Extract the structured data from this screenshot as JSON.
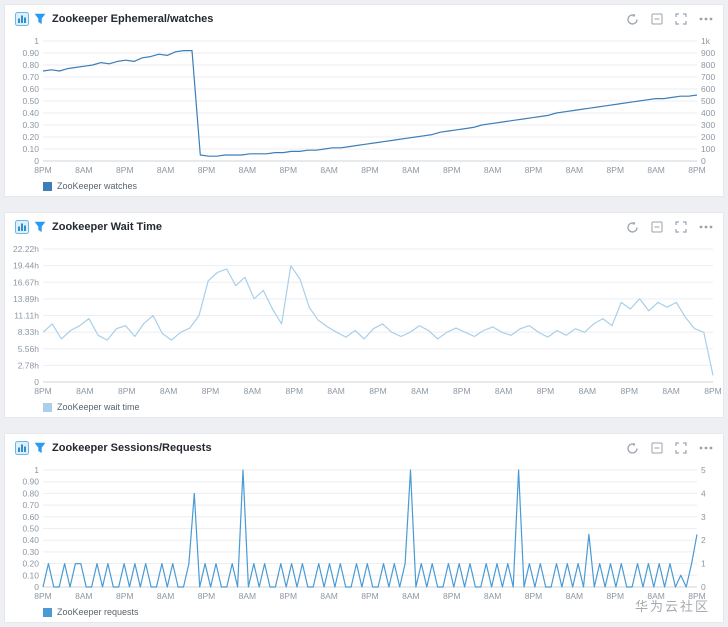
{
  "watermark": "华为云社区",
  "colors": {
    "page_background": "#edeff2",
    "panel_border": "#e6e8eb",
    "title_text": "#24292f",
    "axis_text": "#8d97a3",
    "gridline": "#eceef1",
    "axis_line": "#cfd4da",
    "filter_icon": "#2b9af3",
    "toolbar_icon": "#9aa3ad",
    "watches_line": "#3d7eb8",
    "wait_time_line": "#a9cfe9",
    "requests_line": "#4a9ad4"
  },
  "header_icons": {
    "left": [
      "chart-panel-icon",
      "filter-icon"
    ],
    "right": [
      "refresh-icon",
      "collapse-icon",
      "fullscreen-icon",
      "more-icon"
    ]
  },
  "panels": [
    {
      "title": "Zookeeper Ephemeral/watches",
      "legend": "ZooKeeper watches"
    },
    {
      "title": "Zookeeper Wait Time",
      "legend": "ZooKeeper wait time"
    },
    {
      "title": "Zookeeper Sessions/Requests",
      "legend": "ZooKeeper requests"
    }
  ],
  "chart_data": [
    {
      "type": "line",
      "title": "Zookeeper Ephemeral/watches",
      "ylim": [
        0,
        1
      ],
      "yticks_left": [
        "0",
        "0.10",
        "0.20",
        "0.30",
        "0.40",
        "0.50",
        "0.60",
        "0.70",
        "0.80",
        "0.90",
        "1"
      ],
      "yticks_right": [
        "0",
        "100",
        "200",
        "300",
        "400",
        "500",
        "600",
        "700",
        "800",
        "900",
        "1k"
      ],
      "xticks": [
        "8PM",
        "8AM",
        "8PM",
        "8AM",
        "8PM",
        "8AM",
        "8PM",
        "8AM",
        "8PM",
        "8AM",
        "8PM",
        "8AM",
        "8PM",
        "8AM",
        "8PM",
        "8AM",
        "8PM"
      ],
      "grid": true,
      "legend_position": "bottom-left",
      "series": [
        {
          "name": "ZooKeeper watches",
          "color": "#3d7eb8",
          "values": [
            0.75,
            0.76,
            0.75,
            0.77,
            0.78,
            0.79,
            0.8,
            0.82,
            0.81,
            0.83,
            0.84,
            0.83,
            0.86,
            0.87,
            0.89,
            0.88,
            0.91,
            0.92,
            0.92,
            0.05,
            0.04,
            0.04,
            0.05,
            0.05,
            0.05,
            0.06,
            0.06,
            0.06,
            0.07,
            0.07,
            0.08,
            0.08,
            0.09,
            0.09,
            0.1,
            0.11,
            0.11,
            0.12,
            0.13,
            0.14,
            0.15,
            0.16,
            0.17,
            0.18,
            0.19,
            0.2,
            0.21,
            0.22,
            0.24,
            0.25,
            0.26,
            0.27,
            0.28,
            0.3,
            0.31,
            0.32,
            0.33,
            0.34,
            0.35,
            0.36,
            0.37,
            0.38,
            0.4,
            0.41,
            0.42,
            0.43,
            0.44,
            0.45,
            0.46,
            0.47,
            0.48,
            0.49,
            0.5,
            0.51,
            0.52,
            0.52,
            0.53,
            0.54,
            0.54,
            0.55
          ]
        }
      ]
    },
    {
      "type": "line",
      "title": "Zookeeper Wait Time",
      "ylim": [
        0,
        22.22
      ],
      "yticks_left": [
        "0",
        "2.78h",
        "5.56h",
        "8.33h",
        "11.11h",
        "13.89h",
        "16.67h",
        "19.44h",
        "22.22h"
      ],
      "xticks": [
        "8PM",
        "8AM",
        "8PM",
        "8AM",
        "8PM",
        "8AM",
        "8PM",
        "8AM",
        "8PM",
        "8AM",
        "8PM",
        "8AM",
        "8PM",
        "8AM",
        "8PM",
        "8AM",
        "8PM"
      ],
      "grid": true,
      "legend_position": "bottom-left",
      "series": [
        {
          "name": "ZooKeeper wait time",
          "color": "#a9cfe9",
          "values": [
            8.3,
            9.7,
            7.2,
            8.6,
            9.4,
            10.6,
            7.8,
            7.0,
            8.9,
            9.4,
            7.6,
            9.8,
            11.1,
            8.1,
            7.0,
            8.3,
            9.0,
            11.1,
            16.9,
            18.3,
            18.9,
            16.1,
            17.5,
            13.9,
            15.3,
            12.2,
            9.7,
            19.4,
            17.2,
            12.5,
            10.3,
            9.2,
            8.3,
            7.5,
            8.6,
            7.2,
            8.9,
            9.7,
            8.3,
            7.6,
            8.3,
            9.4,
            8.6,
            7.2,
            8.3,
            9.0,
            8.3,
            7.6,
            8.6,
            9.2,
            8.3,
            7.8,
            8.9,
            9.4,
            8.3,
            7.5,
            8.6,
            7.8,
            8.9,
            8.3,
            9.7,
            10.6,
            9.4,
            13.3,
            12.2,
            13.9,
            11.9,
            13.3,
            12.5,
            13.3,
            10.8,
            8.9,
            8.3,
            1.1
          ]
        }
      ]
    },
    {
      "type": "line",
      "title": "Zookeeper Sessions/Requests",
      "ylim": [
        0,
        1
      ],
      "yticks_left": [
        "0",
        "0.10",
        "0.20",
        "0.30",
        "0.40",
        "0.50",
        "0.60",
        "0.70",
        "0.80",
        "0.90",
        "1"
      ],
      "yticks_right": [
        "0",
        "1",
        "2",
        "3",
        "4",
        "5"
      ],
      "xticks": [
        "8PM",
        "8AM",
        "8PM",
        "8AM",
        "8PM",
        "8AM",
        "8PM",
        "8AM",
        "8PM",
        "8AM",
        "8PM",
        "8AM",
        "8PM",
        "8AM",
        "8PM",
        "8AM",
        "8PM"
      ],
      "grid": true,
      "legend_position": "bottom-left",
      "series": [
        {
          "name": "ZooKeeper requests",
          "color": "#4a9ad4",
          "values": [
            0,
            0.2,
            0,
            0,
            0.2,
            0,
            0.2,
            0.2,
            0,
            0,
            0.2,
            0,
            0.2,
            0,
            0,
            0.2,
            0,
            0.2,
            0,
            0.2,
            0,
            0,
            0.2,
            0,
            0.2,
            0,
            0,
            0.2,
            0.8,
            0,
            0.2,
            0,
            0.2,
            0,
            0,
            0.2,
            0,
            1,
            0,
            0.2,
            0,
            0.2,
            0,
            0,
            0.2,
            0,
            0.2,
            0,
            0.2,
            0,
            0,
            0.2,
            0,
            0.2,
            0,
            0.2,
            0,
            0,
            0.2,
            0,
            0.2,
            0,
            0,
            0.2,
            0,
            0.2,
            0,
            0.2,
            1,
            0,
            0.2,
            0,
            0.2,
            0,
            0,
            0.2,
            0,
            0.2,
            0,
            0.2,
            0,
            0,
            0.2,
            0,
            0.2,
            0,
            0.2,
            0,
            1,
            0,
            0.2,
            0,
            0.2,
            0,
            0,
            0.2,
            0,
            0.2,
            0,
            0.2,
            0,
            0.45,
            0,
            0.2,
            0,
            0.2,
            0,
            0.2,
            0,
            0,
            0.2,
            0,
            0.2,
            0,
            0.2,
            0,
            0.2,
            0,
            0.1,
            0,
            0.2,
            0.45
          ]
        }
      ]
    }
  ]
}
